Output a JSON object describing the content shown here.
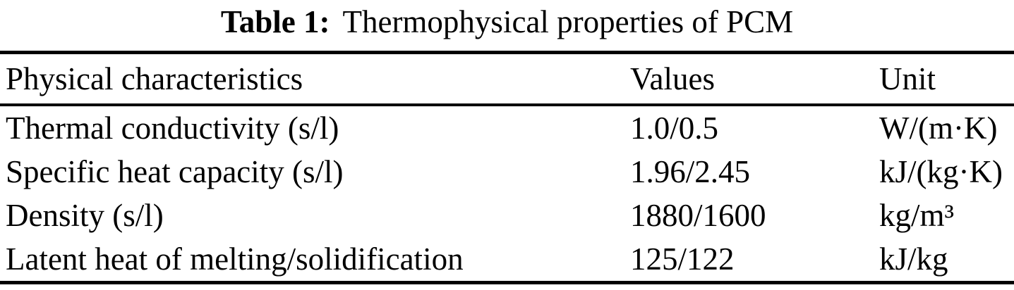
{
  "caption": {
    "label": "Table 1:",
    "text": "Thermophysical properties of PCM"
  },
  "table": {
    "columns": [
      "Physical characteristics",
      "Values",
      "Unit"
    ],
    "rows": [
      {
        "characteristic": "Thermal conductivity (s/l)",
        "value": "1.0/0.5",
        "unit": "W/(m·K)"
      },
      {
        "characteristic": "Specific heat capacity (s/l)",
        "value": "1.96/2.45",
        "unit": "kJ/(kg·K)"
      },
      {
        "characteristic": "Density (s/l)",
        "value": "1880/1600",
        "unit": "kg/m³"
      },
      {
        "characteristic": "Latent heat of melting/solidification",
        "value": "125/122",
        "unit": "kJ/kg"
      }
    ]
  },
  "colors": {
    "text": "#000000",
    "background": "#ffffff",
    "rule": "#000000"
  }
}
